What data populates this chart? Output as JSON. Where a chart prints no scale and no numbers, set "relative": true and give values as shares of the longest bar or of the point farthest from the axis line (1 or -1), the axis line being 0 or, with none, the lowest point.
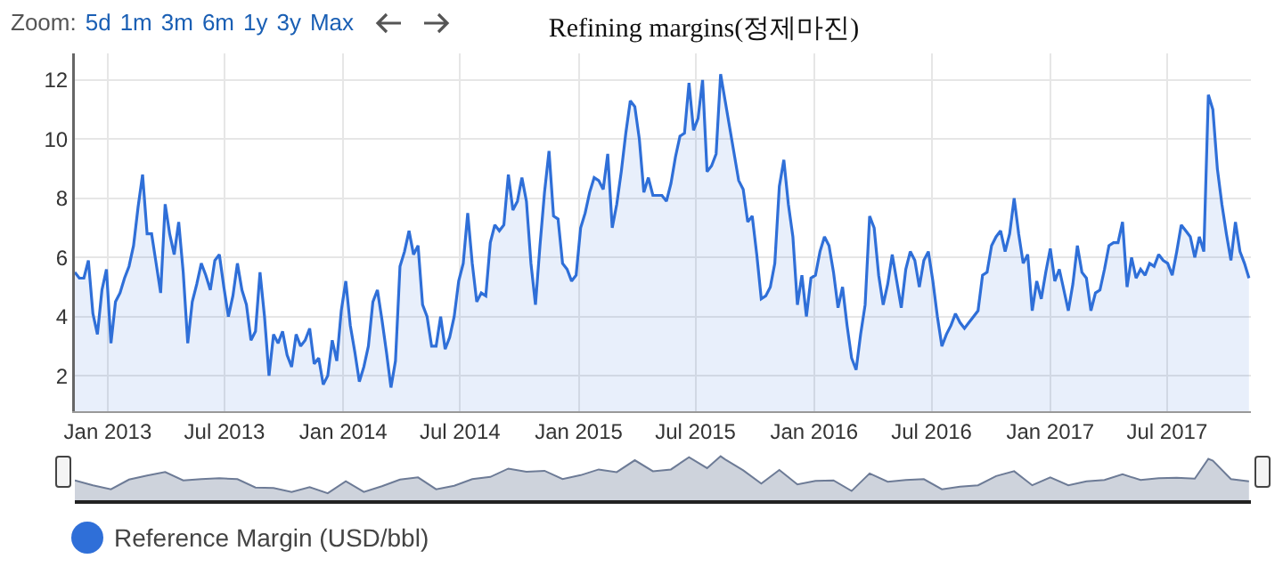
{
  "chart_data": [
    {
      "type": "area",
      "title": "Refining margins(정제마진)",
      "annotations": [
        "Zoom:",
        "5d",
        "1m",
        "3m",
        "6m",
        "1y",
        "3y",
        "Max"
      ],
      "x": [
        "2012-11-11",
        "2012-11-18",
        "2012-11-25",
        "2012-12-02",
        "2012-12-09",
        "2012-12-16",
        "2012-12-23",
        "2012-12-30",
        "2013-01-06",
        "2013-01-13",
        "2013-01-20",
        "2013-01-27",
        "2013-02-03",
        "2013-02-10",
        "2013-02-17",
        "2013-02-24",
        "2013-03-03",
        "2013-03-10",
        "2013-03-17",
        "2013-03-24",
        "2013-03-31",
        "2013-04-07",
        "2013-04-14",
        "2013-04-21",
        "2013-04-28",
        "2013-05-05",
        "2013-05-12",
        "2013-05-19",
        "2013-05-26",
        "2013-06-02",
        "2013-06-09",
        "2013-06-16",
        "2013-06-23",
        "2013-06-30",
        "2013-07-07",
        "2013-07-14",
        "2013-07-21",
        "2013-07-28",
        "2013-08-04",
        "2013-08-11",
        "2013-08-18",
        "2013-08-25",
        "2013-09-01",
        "2013-09-08",
        "2013-09-15",
        "2013-09-22",
        "2013-09-29",
        "2013-10-06",
        "2013-10-13",
        "2013-10-20",
        "2013-10-27",
        "2013-11-03",
        "2013-11-10",
        "2013-11-17",
        "2013-11-24",
        "2013-12-01",
        "2013-12-08",
        "2013-12-15",
        "2013-12-22",
        "2013-12-29",
        "2014-01-05",
        "2014-01-12",
        "2014-01-19",
        "2014-01-26",
        "2014-02-02",
        "2014-02-09",
        "2014-02-16",
        "2014-02-23",
        "2014-03-02",
        "2014-03-09",
        "2014-03-16",
        "2014-03-23",
        "2014-03-30",
        "2014-04-06",
        "2014-04-13",
        "2014-04-20",
        "2014-04-27",
        "2014-05-04",
        "2014-05-11",
        "2014-05-18",
        "2014-05-25",
        "2014-06-01",
        "2014-06-08",
        "2014-06-15",
        "2014-06-22",
        "2014-06-29",
        "2014-07-06",
        "2014-07-13",
        "2014-07-20",
        "2014-07-27",
        "2014-08-03",
        "2014-08-10",
        "2014-08-17",
        "2014-08-24",
        "2014-08-31",
        "2014-09-07",
        "2014-09-14",
        "2014-09-21",
        "2014-09-28",
        "2014-10-05",
        "2014-10-12",
        "2014-10-19",
        "2014-10-26",
        "2014-11-02",
        "2014-11-09",
        "2014-11-16",
        "2014-11-23",
        "2014-11-30",
        "2014-12-07",
        "2014-12-14",
        "2014-12-21",
        "2014-12-28",
        "2015-01-04",
        "2015-01-11",
        "2015-01-18",
        "2015-01-25",
        "2015-02-01",
        "2015-02-08",
        "2015-02-15",
        "2015-02-22",
        "2015-03-01",
        "2015-03-08",
        "2015-03-15",
        "2015-03-22",
        "2015-03-29",
        "2015-04-05",
        "2015-04-12",
        "2015-04-19",
        "2015-04-26",
        "2015-05-03",
        "2015-05-10",
        "2015-05-17",
        "2015-05-24",
        "2015-05-31",
        "2015-06-07",
        "2015-06-14",
        "2015-06-21",
        "2015-06-28",
        "2015-07-05",
        "2015-07-12",
        "2015-07-19",
        "2015-07-26",
        "2015-08-02",
        "2015-08-09",
        "2015-08-16",
        "2015-08-23",
        "2015-08-30",
        "2015-09-06",
        "2015-09-13",
        "2015-09-20",
        "2015-09-27",
        "2015-10-04",
        "2015-10-11",
        "2015-10-18",
        "2015-10-25",
        "2015-11-01",
        "2015-11-08",
        "2015-11-15",
        "2015-11-22",
        "2015-11-29",
        "2015-12-06",
        "2015-12-13",
        "2015-12-20",
        "2015-12-27",
        "2016-01-03",
        "2016-01-10",
        "2016-01-17",
        "2016-01-24",
        "2016-01-31",
        "2016-02-07",
        "2016-02-14",
        "2016-02-21",
        "2016-02-28",
        "2016-03-06",
        "2016-03-13",
        "2016-03-20",
        "2016-03-27",
        "2016-04-03",
        "2016-04-10",
        "2016-04-17",
        "2016-04-24",
        "2016-05-01",
        "2016-05-08",
        "2016-05-15",
        "2016-05-22",
        "2016-05-29",
        "2016-06-05",
        "2016-06-12",
        "2016-06-19",
        "2016-06-26",
        "2016-07-03",
        "2016-07-10",
        "2016-07-17",
        "2016-07-24",
        "2016-07-31",
        "2016-08-07",
        "2016-08-14",
        "2016-08-21",
        "2016-08-28",
        "2016-09-04",
        "2016-09-11",
        "2016-09-18",
        "2016-09-25",
        "2016-10-02",
        "2016-10-09",
        "2016-10-16",
        "2016-10-23",
        "2016-10-30",
        "2016-11-06",
        "2016-11-13",
        "2016-11-20",
        "2016-11-27",
        "2016-12-04",
        "2016-12-11",
        "2016-12-18",
        "2016-12-25",
        "2017-01-01",
        "2017-01-08",
        "2017-01-15",
        "2017-01-22",
        "2017-01-29",
        "2017-02-05",
        "2017-02-12",
        "2017-02-19",
        "2017-02-26",
        "2017-03-05",
        "2017-03-12",
        "2017-03-19",
        "2017-03-26",
        "2017-04-02",
        "2017-04-09",
        "2017-04-16",
        "2017-04-23",
        "2017-04-30",
        "2017-05-07",
        "2017-05-14",
        "2017-05-21",
        "2017-05-28",
        "2017-06-04",
        "2017-06-11",
        "2017-06-18",
        "2017-06-25",
        "2017-07-02",
        "2017-07-09",
        "2017-07-16",
        "2017-07-23",
        "2017-07-30",
        "2017-08-06",
        "2017-08-13",
        "2017-08-20",
        "2017-08-27",
        "2017-09-03",
        "2017-09-10",
        "2017-09-17",
        "2017-09-24",
        "2017-10-01",
        "2017-10-08",
        "2017-10-15",
        "2017-10-22",
        "2017-10-29",
        "2017-11-05"
      ],
      "series": [
        {
          "name": "Reference Margin (USD/bbl)",
          "color": "#2f6fd8",
          "values": [
            5.5,
            5.3,
            5.3,
            5.9,
            4.1,
            3.4,
            4.9,
            5.6,
            3.1,
            4.5,
            4.8,
            5.3,
            5.7,
            6.4,
            7.7,
            8.8,
            6.8,
            6.8,
            5.8,
            4.8,
            7.8,
            6.8,
            6.1,
            7.2,
            5.5,
            3.1,
            4.5,
            5.1,
            5.8,
            5.4,
            4.9,
            5.9,
            6.1,
            5.0,
            4.0,
            4.7,
            5.8,
            4.9,
            4.4,
            3.2,
            3.5,
            5.5,
            4.0,
            2.0,
            3.4,
            3.1,
            3.5,
            2.7,
            2.3,
            3.4,
            3.0,
            3.2,
            3.6,
            2.4,
            2.6,
            1.7,
            2.0,
            3.2,
            2.5,
            4.2,
            5.2,
            3.7,
            2.8,
            1.8,
            2.3,
            3.0,
            4.5,
            4.9,
            3.9,
            2.8,
            1.6,
            2.5,
            5.7,
            6.2,
            6.9,
            6.1,
            6.4,
            4.4,
            4.0,
            3.0,
            3.0,
            4.0,
            2.9,
            3.3,
            4.0,
            5.2,
            5.8,
            7.5,
            5.8,
            4.5,
            4.8,
            4.7,
            6.5,
            7.1,
            6.9,
            7.1,
            8.8,
            7.6,
            7.9,
            8.7,
            7.9,
            5.8,
            4.4,
            6.4,
            8.2,
            9.6,
            7.4,
            7.3,
            5.8,
            5.6,
            5.2,
            5.4,
            7.0,
            7.5,
            8.2,
            8.7,
            8.6,
            8.3,
            9.5,
            7.0,
            7.8,
            8.9,
            10.2,
            11.3,
            11.1,
            10.0,
            8.2,
            8.7,
            8.1,
            8.1,
            8.1,
            7.9,
            8.5,
            9.4,
            10.1,
            10.2,
            11.9,
            10.3,
            10.7,
            12.0,
            8.9,
            9.1,
            9.5,
            12.2,
            11.3,
            10.4,
            9.5,
            8.6,
            8.3,
            7.2,
            7.4,
            6.1,
            4.6,
            4.7,
            5.0,
            5.8,
            8.4,
            9.3,
            7.8,
            6.7,
            4.4,
            5.4,
            4.0,
            5.3,
            5.4,
            6.2,
            6.7,
            6.4,
            5.5,
            4.3,
            5.0,
            3.7,
            2.6,
            2.2,
            3.4,
            4.4,
            7.4,
            7.0,
            5.4,
            4.4,
            5.1,
            6.1,
            5.2,
            4.3,
            5.6,
            6.2,
            5.9,
            5.0,
            5.9,
            6.2,
            5.2,
            4.0,
            3.0,
            3.4,
            3.7,
            4.1,
            3.8,
            3.6,
            3.8,
            4.0,
            4.2,
            5.4,
            5.5,
            6.4,
            6.7,
            6.9,
            6.2,
            6.8,
            8.0,
            6.8,
            5.8,
            6.1,
            4.2,
            5.2,
            4.6,
            5.5,
            6.3,
            5.2,
            5.6,
            4.9,
            4.2,
            5.1,
            6.4,
            5.5,
            5.3,
            4.2,
            4.8,
            4.9,
            5.6,
            6.4,
            6.5,
            6.5,
            7.2,
            5.0,
            6.0,
            5.3,
            5.6,
            5.4,
            5.8,
            5.7,
            6.1,
            5.9,
            5.8,
            5.4,
            6.2,
            7.1,
            6.9,
            6.7,
            6.0,
            6.7,
            6.2,
            11.5,
            11.0,
            9.0,
            7.8,
            6.8,
            5.9,
            7.2,
            6.2,
            5.8,
            5.3
          ]
        }
      ],
      "xlim": [
        "2012-11-11",
        "2017-11-08"
      ],
      "xticks": [
        {
          "value": "2013-01-01",
          "label": "Jan 2013"
        },
        {
          "value": "2013-07-01",
          "label": "Jul 2013"
        },
        {
          "value": "2014-01-01",
          "label": "Jan 2014"
        },
        {
          "value": "2014-07-01",
          "label": "Jul 2014"
        },
        {
          "value": "2015-01-01",
          "label": "Jan 2015"
        },
        {
          "value": "2015-07-01",
          "label": "Jul 2015"
        },
        {
          "value": "2016-01-01",
          "label": "Jan 2016"
        },
        {
          "value": "2016-07-01",
          "label": "Jul 2016"
        },
        {
          "value": "2017-01-01",
          "label": "Jan 2017"
        },
        {
          "value": "2017-07-01",
          "label": "Jul 2017"
        }
      ],
      "ylim": [
        0.8,
        12.9
      ],
      "yticks": [
        2,
        4,
        6,
        8,
        10,
        12
      ],
      "grid": true,
      "legend": "bottom left"
    },
    {
      "type": "area",
      "relative": true,
      "x": [
        "2012-11-11",
        "2012-12-09",
        "2013-01-06",
        "2013-02-03",
        "2013-03-03",
        "2013-03-31",
        "2013-04-28",
        "2013-05-26",
        "2013-06-23",
        "2013-07-21",
        "2013-08-18",
        "2013-09-15",
        "2013-10-13",
        "2013-11-10",
        "2013-12-08",
        "2014-01-05",
        "2014-02-02",
        "2014-03-02",
        "2014-03-30",
        "2014-04-27",
        "2014-05-25",
        "2014-06-22",
        "2014-07-20",
        "2014-08-17",
        "2014-09-14",
        "2014-10-12",
        "2014-11-09",
        "2014-12-07",
        "2015-01-04",
        "2015-02-01",
        "2015-03-01",
        "2015-03-29",
        "2015-04-26",
        "2015-05-24",
        "2015-06-21",
        "2015-07-19",
        "2015-08-09",
        "2015-08-16",
        "2015-09-13",
        "2015-10-11",
        "2015-11-08",
        "2015-12-06",
        "2016-01-03",
        "2016-01-31",
        "2016-02-28",
        "2016-03-27",
        "2016-04-24",
        "2016-05-22",
        "2016-06-19",
        "2016-07-17",
        "2016-08-14",
        "2016-09-11",
        "2016-10-09",
        "2016-11-06",
        "2016-12-04",
        "2017-01-01",
        "2017-01-29",
        "2017-02-26",
        "2017-03-26",
        "2017-04-23",
        "2017-05-21",
        "2017-06-18",
        "2017-07-16",
        "2017-08-13",
        "2017-09-03",
        "2017-09-10",
        "2017-10-08",
        "2017-11-05"
      ],
      "series": [
        {
          "color": "#6d7b96",
          "values": [
            0.45,
            0.34,
            0.25,
            0.47,
            0.56,
            0.64,
            0.45,
            0.48,
            0.5,
            0.48,
            0.29,
            0.28,
            0.19,
            0.3,
            0.16,
            0.43,
            0.19,
            0.32,
            0.47,
            0.52,
            0.25,
            0.33,
            0.48,
            0.53,
            0.72,
            0.65,
            0.67,
            0.48,
            0.57,
            0.7,
            0.64,
            0.91,
            0.66,
            0.7,
            0.98,
            0.73,
            1,
            0.93,
            0.68,
            0.38,
            0.69,
            0.36,
            0.44,
            0.45,
            0.21,
            0.61,
            0.42,
            0.46,
            0.48,
            0.25,
            0.31,
            0.34,
            0.55,
            0.66,
            0.34,
            0.52,
            0.34,
            0.43,
            0.46,
            0.59,
            0.46,
            0.5,
            0.51,
            0.49,
            0.94,
            0.9,
            0.48,
            0.43
          ]
        }
      ],
      "xlim": [
        "2012-11-11",
        "2017-11-08"
      ]
    }
  ]
}
